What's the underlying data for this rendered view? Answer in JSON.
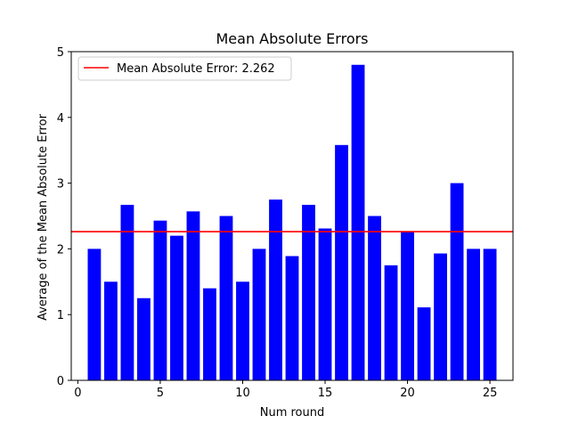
{
  "chart_data": {
    "type": "bar",
    "title": "Mean Absolute Errors",
    "xlabel": "Num round",
    "ylabel": "Average of the Mean Absolute Error",
    "x": [
      1,
      2,
      3,
      4,
      5,
      6,
      7,
      8,
      9,
      10,
      11,
      12,
      13,
      14,
      15,
      16,
      17,
      18,
      19,
      20,
      21,
      22,
      23,
      24,
      25
    ],
    "values": [
      2.0,
      1.5,
      2.67,
      1.25,
      2.43,
      2.2,
      2.57,
      1.4,
      2.5,
      1.5,
      2.0,
      2.75,
      1.89,
      2.67,
      2.31,
      3.58,
      4.8,
      2.5,
      1.75,
      2.27,
      1.11,
      1.93,
      3.0,
      2.0,
      2.0
    ],
    "xlim": [
      -0.4,
      26.4
    ],
    "ylim": [
      0,
      5
    ],
    "xticks": [
      "0",
      "5",
      "10",
      "15",
      "20",
      "25"
    ],
    "yticks": [
      "0",
      "1",
      "2",
      "3",
      "4",
      "5"
    ],
    "bar_color": "#0000ff",
    "reference_line": {
      "value": 2.262,
      "color": "#ff0000",
      "label": "Mean Absolute Error: 2.262"
    },
    "legend_position": "upper-left",
    "grid": false
  }
}
